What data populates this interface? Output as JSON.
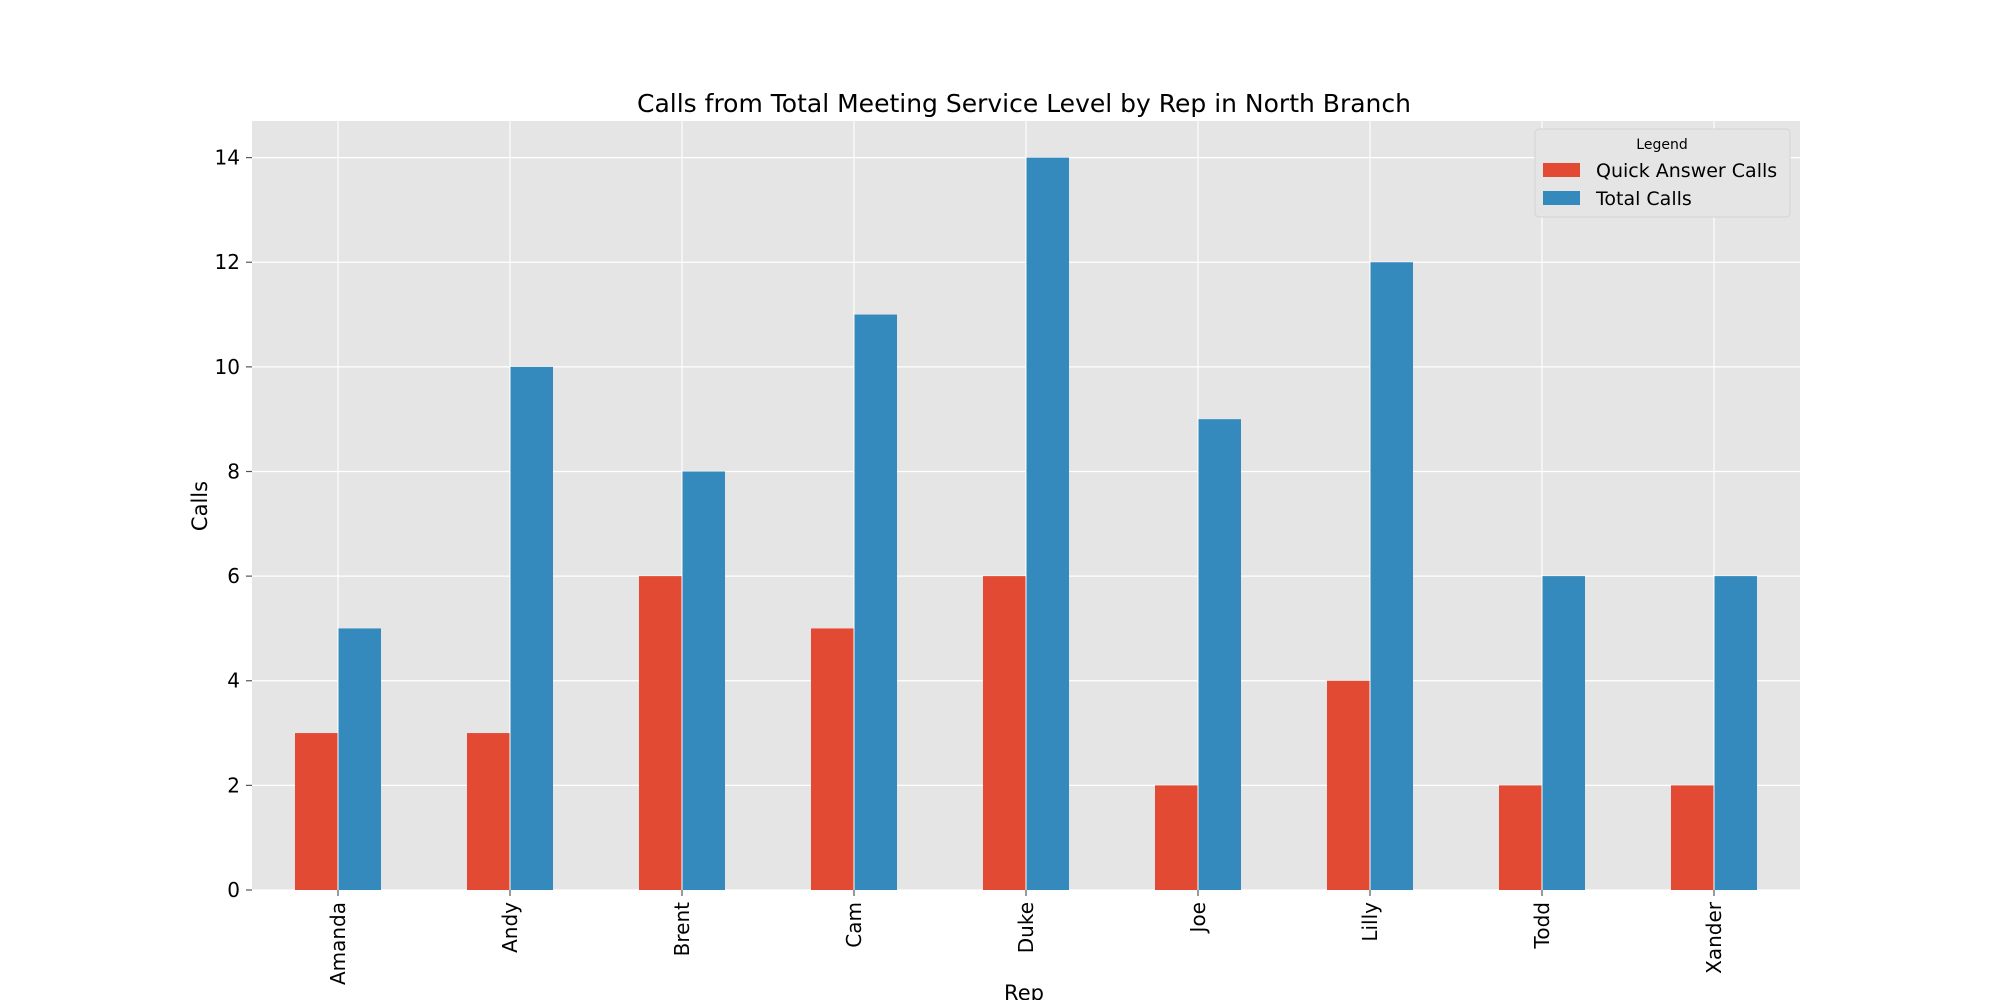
{
  "chart_data": {
    "type": "bar",
    "title": "Calls from Total Meeting Service Level by Rep in North Branch",
    "xlabel": "Rep",
    "ylabel": "Calls",
    "categories": [
      "Amanda",
      "Andy",
      "Brent",
      "Cam",
      "Duke",
      "Joe",
      "Lilly",
      "Todd",
      "Xander"
    ],
    "series": [
      {
        "name": "Quick Answer Calls",
        "color": "#E24A33",
        "values": [
          3,
          3,
          6,
          5,
          6,
          2,
          4,
          2,
          2
        ]
      },
      {
        "name": "Total Calls",
        "color": "#348ABD",
        "values": [
          5,
          10,
          8,
          11,
          14,
          9,
          12,
          6,
          6
        ]
      }
    ],
    "ylim": [
      0,
      14.7
    ],
    "yticks": [
      0,
      2,
      4,
      6,
      8,
      10,
      12,
      14
    ],
    "grid": true,
    "legend": {
      "title": "Legend",
      "placement": "top-right"
    },
    "plot_background": "#E5E5E5"
  }
}
